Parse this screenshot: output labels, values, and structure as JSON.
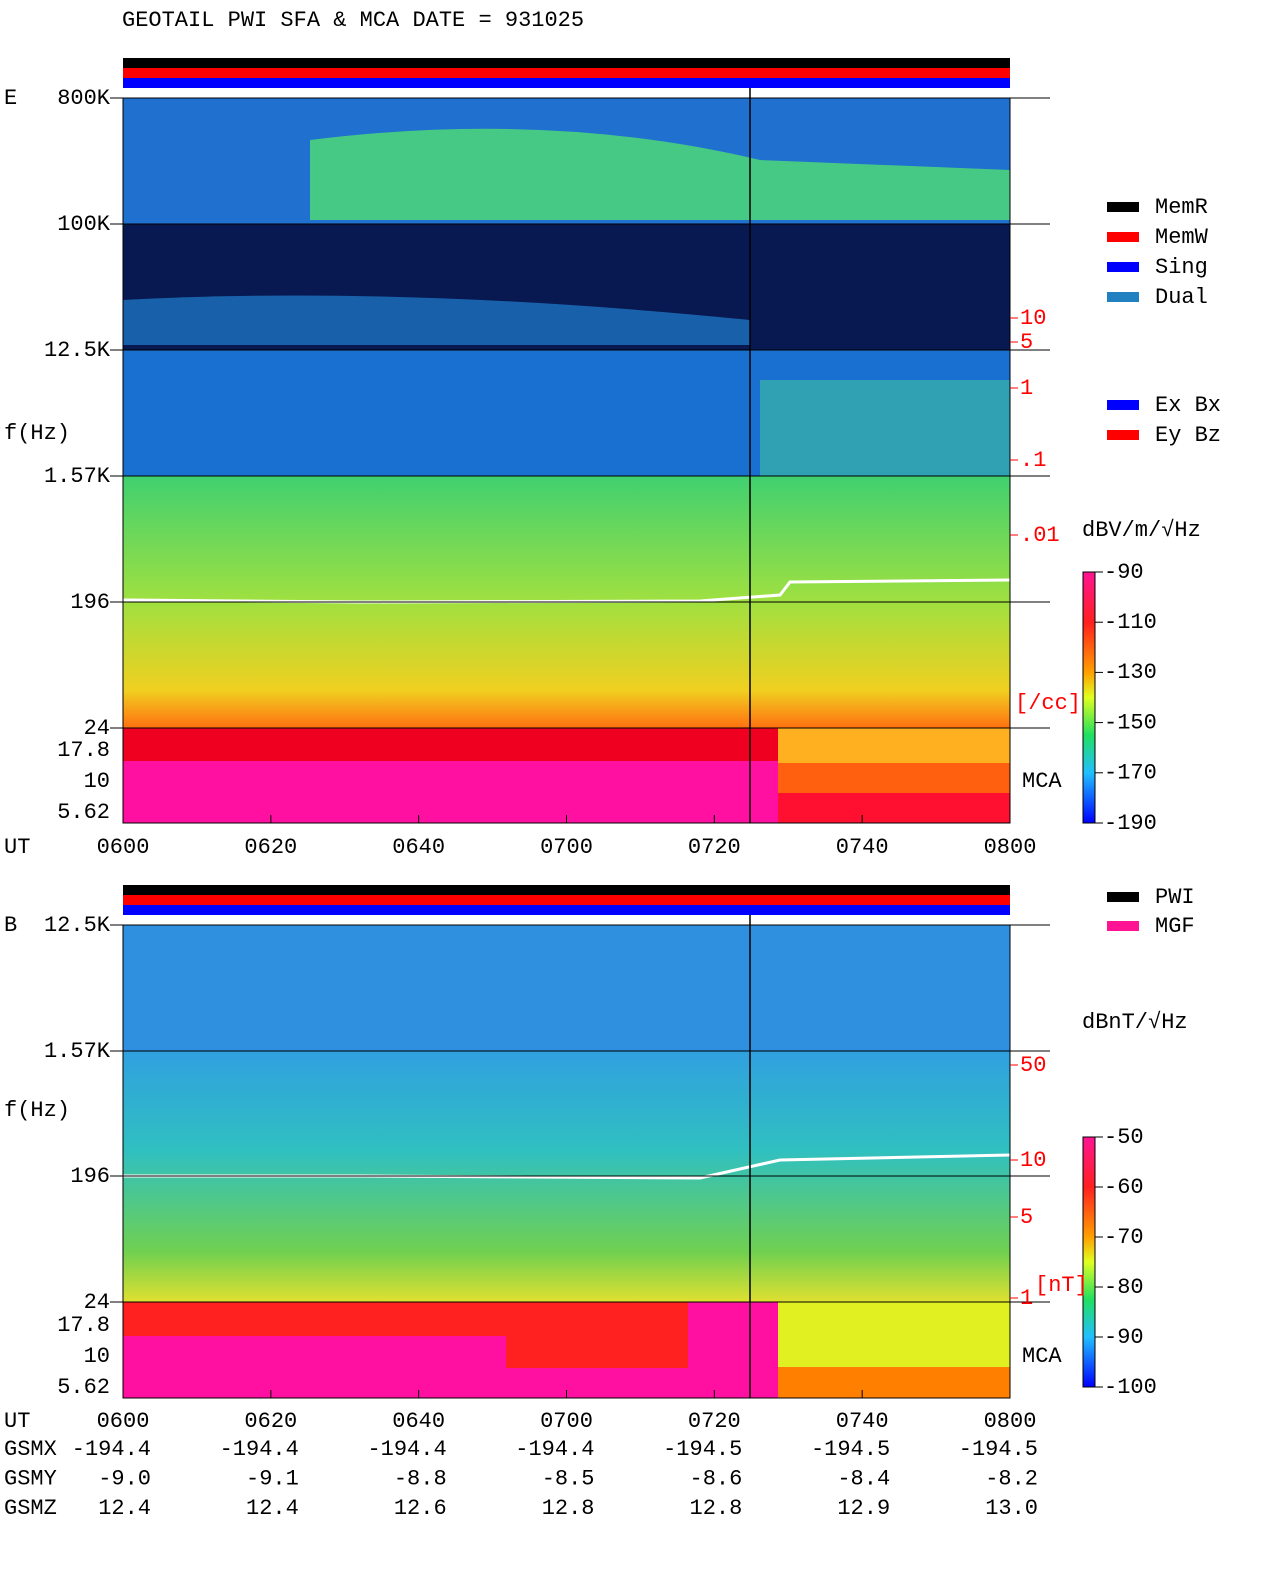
{
  "title": "GEOTAIL  PWI SFA & MCA   DATE = 931025",
  "panels": [
    {
      "component": "E",
      "y_axis_label": "f(Hz)",
      "freq_ticks": [
        "800K",
        "100K",
        "12.5K",
        "1.57K",
        "196",
        "24",
        "17.8",
        "10",
        "5.62"
      ],
      "mca_label": "MCA",
      "x_axis_label": "UT",
      "time_ticks": [
        "0600",
        "0620",
        "0640",
        "0700",
        "0720",
        "0740",
        "0800"
      ],
      "aux_scale": {
        "ticks": [
          "10",
          "5",
          "1",
          ".1",
          ".01"
        ],
        "unit": "[/cc]"
      },
      "colorbar": {
        "unit": "dBV/m/√Hz",
        "ticks": [
          -90,
          -110,
          -130,
          -150,
          -170,
          -190
        ],
        "lim": [
          -190,
          -90
        ]
      }
    },
    {
      "component": "B",
      "y_axis_label": "f(Hz)",
      "freq_ticks": [
        "12.5K",
        "1.57K",
        "196",
        "24",
        "17.8",
        "10",
        "5.62"
      ],
      "mca_label": "MCA",
      "x_axis_label": "UT",
      "time_ticks": [
        "0600",
        "0620",
        "0640",
        "0700",
        "0720",
        "0740",
        "0800"
      ],
      "aux_scale": {
        "ticks": [
          "50",
          "10",
          "5",
          "1"
        ],
        "unit": "[nT]"
      },
      "colorbar": {
        "unit": "dBnT/√Hz",
        "ticks": [
          -50,
          -60,
          -70,
          -80,
          -90,
          -100
        ],
        "lim": [
          -100,
          -50
        ]
      }
    }
  ],
  "legend_mode": [
    {
      "name": "MemR",
      "color": "#000000"
    },
    {
      "name": "MemW",
      "color": "#ff0000"
    },
    {
      "name": "Sing",
      "color": "#0000ff"
    },
    {
      "name": "Dual",
      "color": "#2080c0"
    }
  ],
  "legend_antenna": [
    {
      "name": "Ex Bx",
      "color": "#0000ff"
    },
    {
      "name": "Ey Bz",
      "color": "#ff0000"
    }
  ],
  "legend_source": [
    {
      "name": "PWI",
      "color": "#000000"
    },
    {
      "name": "MGF",
      "color": "#ff1493"
    }
  ],
  "orbit": [
    {
      "label": "GSMX",
      "values": [
        "-194.4",
        "-194.4",
        "-194.4",
        "-194.4",
        "-194.5",
        "-194.5",
        "-194.5"
      ]
    },
    {
      "label": "GSMY",
      "values": [
        "-9.0",
        "-9.1",
        "-8.8",
        "-8.5",
        "-8.6",
        "-8.4",
        "-8.2"
      ]
    },
    {
      "label": "GSMZ",
      "values": [
        "12.4",
        "12.4",
        "12.6",
        "12.8",
        "12.8",
        "12.9",
        "13.0"
      ]
    }
  ]
}
